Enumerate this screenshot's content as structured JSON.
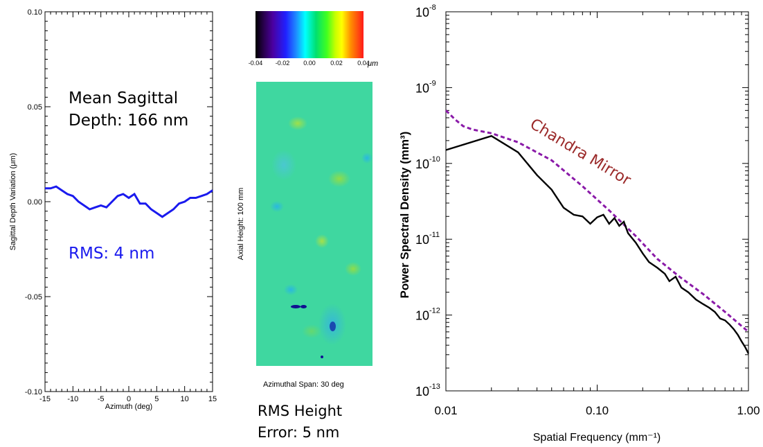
{
  "left_panel": {
    "annotation_line1": "Mean Sagittal",
    "annotation_line2": "Depth: 166 nm",
    "rms_label": "RMS: 4 nm",
    "colors": {
      "series": "#1a1aee",
      "text_rms": "#1a1aee"
    }
  },
  "middle_panel": {
    "colorbar_ticks": [
      "-0.04",
      "-0.02",
      "0.00",
      "0.02",
      "0.04"
    ],
    "colorbar_unit": "μm",
    "y_caption": "Axial Height:  100 mm",
    "x_caption": "Azimuthal Span:  30 deg",
    "rms_line1": "RMS Height",
    "rms_line2": "Error: 5 nm",
    "colors": {
      "map_base": "#3fd7a0"
    }
  },
  "right_panel": {
    "series_label": "Chandra Mirror",
    "colors": {
      "measured": "#000000",
      "chandra": "#8a1aa8",
      "label": "#9b2a2a"
    }
  },
  "chart_data": [
    {
      "type": "line",
      "title": "",
      "xlabel": "Azimuth (deg)",
      "ylabel": "Sagittal Depth Variation (μm)",
      "xlim": [
        -15,
        15
      ],
      "ylim": [
        -0.1,
        0.1
      ],
      "x_ticks": [
        "-15",
        "-10",
        "-5",
        "0",
        "5",
        "10",
        "15"
      ],
      "y_ticks": [
        "0.10",
        "0.05",
        "0.00",
        "-0.05",
        "-0.10"
      ],
      "series": [
        {
          "x": [
            -15,
            -14,
            -13,
            -12,
            -11,
            -10,
            -9,
            -8,
            -7,
            -6,
            -5,
            -4,
            -3,
            -2,
            -1,
            0,
            1,
            2,
            3,
            4,
            5,
            6,
            7,
            8,
            9,
            10,
            11,
            12,
            13,
            14,
            15
          ],
          "values": [
            0.007,
            0.007,
            0.008,
            0.006,
            0.004,
            0.003,
            0.0,
            -0.002,
            -0.004,
            -0.003,
            -0.002,
            -0.003,
            0.0,
            0.003,
            0.004,
            0.002,
            0.004,
            -0.001,
            -0.001,
            -0.004,
            -0.006,
            -0.008,
            -0.006,
            -0.004,
            -0.001,
            0.0,
            0.002,
            0.002,
            0.003,
            0.004,
            0.006
          ]
        }
      ]
    },
    {
      "type": "heatmap",
      "title": "",
      "colorbar_range": [
        -0.04,
        0.04
      ],
      "colorbar_ticks": [
        "-0.04",
        "-0.02",
        "0.00",
        "0.02",
        "0.04"
      ]
    },
    {
      "type": "line",
      "title": "",
      "xlabel": "Spatial Frequency (mm⁻¹)",
      "ylabel": "Power Spectral Density (mm³)",
      "x_scale": "log",
      "y_scale": "log",
      "xlim": [
        0.01,
        1.0
      ],
      "ylim": [
        1e-13,
        1e-08
      ],
      "x_ticks": [
        "0.01",
        "0.10",
        "1.00"
      ],
      "y_ticks": [
        {
          "base": "10",
          "exp": "-8"
        },
        {
          "base": "10",
          "exp": "-9"
        },
        {
          "base": "10",
          "exp": "-10"
        },
        {
          "base": "10",
          "exp": "-11"
        },
        {
          "base": "10",
          "exp": "-12"
        },
        {
          "base": "10",
          "exp": "-13"
        }
      ],
      "series": [
        {
          "x": [
            0.01,
            0.02,
            0.03,
            0.04,
            0.05,
            0.06,
            0.07,
            0.08,
            0.09,
            0.1,
            0.11,
            0.12,
            0.13,
            0.14,
            0.15,
            0.16,
            0.18,
            0.2,
            0.22,
            0.25,
            0.28,
            0.3,
            0.33,
            0.36,
            0.4,
            0.45,
            0.5,
            0.55,
            0.6,
            0.65,
            0.7,
            0.75,
            0.8,
            0.85,
            0.9,
            0.95,
            1.0
          ],
          "values": [
            1.5e-10,
            2.3e-10,
            1.4e-10,
            7e-11,
            4.5e-11,
            2.6e-11,
            2.1e-11,
            2e-11,
            1.6e-11,
            1.95e-11,
            2.1e-11,
            1.6e-11,
            1.9e-11,
            1.5e-11,
            1.7e-11,
            1.2e-11,
            9e-12,
            6.5e-12,
            5e-12,
            4.2e-12,
            3.5e-12,
            2.8e-12,
            3.2e-12,
            2.3e-12,
            2e-12,
            1.6e-12,
            1.4e-12,
            1.25e-12,
            1.1e-12,
            9e-13,
            8.5e-13,
            7.5e-13,
            6.5e-13,
            5.5e-13,
            4.5e-13,
            3.8e-13,
            3.1e-13
          ]
        },
        {
          "name": "Chandra Mirror",
          "x": [
            0.01,
            0.0115,
            0.013,
            0.015,
            0.02,
            0.03,
            0.05,
            0.08,
            0.12,
            0.18,
            0.25,
            0.35,
            0.5,
            0.7,
            1.0
          ],
          "values": [
            5e-10,
            3.8e-10,
            3.1e-10,
            2.8e-10,
            2.5e-10,
            1.9e-10,
            1.1e-10,
            5e-11,
            2.4e-11,
            1.1e-11,
            5.5e-12,
            3.2e-12,
            1.9e-12,
            1.1e-12,
            6e-13
          ]
        }
      ]
    }
  ]
}
